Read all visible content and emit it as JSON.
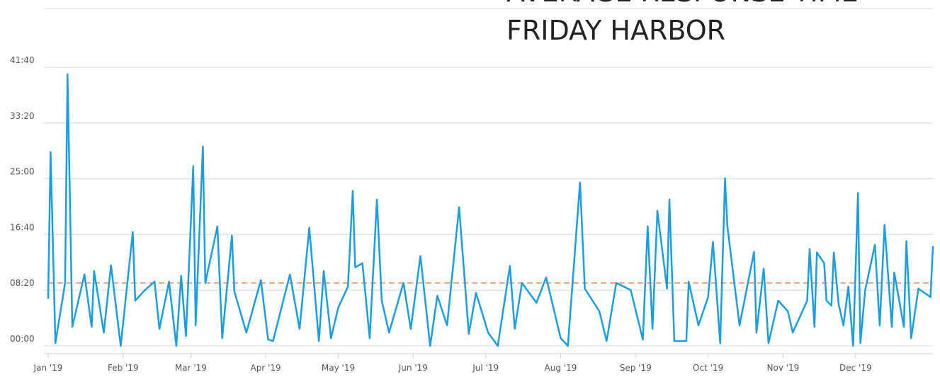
{
  "chart_data": {
    "type": "line",
    "title": [
      "AVERAGE RESPONSE TIME",
      "FRIDAY HARBOR"
    ],
    "x": [
      0,
      1,
      3,
      7,
      8,
      10,
      15,
      18,
      19,
      23,
      26,
      30,
      35,
      36,
      40,
      44,
      46,
      50,
      53,
      55,
      57,
      60,
      61,
      64,
      65,
      70,
      72,
      76,
      77,
      82,
      88,
      91,
      93,
      100,
      104,
      108,
      112,
      114,
      117,
      120,
      124,
      126,
      127,
      130,
      133,
      136,
      138,
      141,
      147,
      150,
      154,
      158,
      161,
      165,
      170,
      174,
      177,
      182,
      186,
      191,
      193,
      196,
      202,
      206,
      212,
      215,
      220,
      222,
      228,
      231,
      235,
      241,
      246,
      248,
      250,
      252,
      256,
      257,
      259,
      264,
      265,
      269,
      273,
      275,
      278,
      280,
      281,
      286,
      292,
      293,
      296,
      298,
      302,
      306,
      308,
      314,
      315,
      317,
      318,
      321,
      322,
      324,
      325,
      327,
      329,
      331,
      333,
      335,
      336,
      338,
      342,
      344,
      346,
      349,
      350,
      354,
      355,
      357,
      360,
      365,
      366
    ],
    "series": [
      {
        "name": "Average response time",
        "color": "#1a9ee0",
        "values": [
          425,
          1739,
          25,
          565,
          2437,
          171,
          640,
          171,
          672,
          120,
          723,
          0,
          1021,
          406,
          500,
          577,
          152,
          577,
          0,
          628,
          89,
          1612,
          184,
          1789,
          565,
          1072,
          70,
          990,
          489,
          120,
          590,
          57,
          44,
          641,
          152,
          1060,
          44,
          672,
          70,
          343,
          533,
          1390,
          704,
          742,
          70,
          1313,
          406,
          120,
          565,
          152,
          806,
          0,
          450,
          184,
          1244,
          108,
          476,
          120,
          0,
          717,
          152,
          565,
          387,
          615,
          70,
          0,
          1466,
          514,
          311,
          44,
          565,
          501,
          57,
          1072,
          152,
          1212,
          514,
          1313,
          44,
          44,
          577,
          184,
          438,
          933,
          25,
          1504,
          1072,
          184,
          844,
          120,
          692,
          25,
          406,
          311,
          120,
          406,
          869,
          171,
          838,
          742,
          406,
          362,
          838,
          374,
          184,
          533,
          0,
          1371,
          25,
          501,
          907,
          184,
          1085,
          171,
          660,
          171,
          939,
          70,
          514,
          438,
          895
        ]
      }
    ],
    "reference_line": {
      "value": 565,
      "color": "#f4a582"
    },
    "xlim": [
      0,
      366
    ],
    "xticks": [
      {
        "value": 0,
        "label": "Jan '19"
      },
      {
        "value": 31,
        "label": "Feb '19"
      },
      {
        "value": 59,
        "label": "Mar '19"
      },
      {
        "value": 90,
        "label": "Apr '19"
      },
      {
        "value": 120,
        "label": "May '19"
      },
      {
        "value": 151,
        "label": "Jun '19"
      },
      {
        "value": 181,
        "label": "Jul '19"
      },
      {
        "value": 212,
        "label": "Aug '19"
      },
      {
        "value": 243,
        "label": "Sep '19"
      },
      {
        "value": 273,
        "label": "Oct '19"
      },
      {
        "value": 304,
        "label": "Nov '19"
      },
      {
        "value": 334,
        "label": "Dec '19"
      }
    ],
    "ylim": [
      0,
      2500
    ],
    "yticks": [
      {
        "value": 0,
        "label": "00:00"
      },
      {
        "value": 500,
        "label": "08:20"
      },
      {
        "value": 1000,
        "label": "16:40"
      },
      {
        "value": 1500,
        "label": "25:00"
      },
      {
        "value": 2000,
        "label": "33:20"
      },
      {
        "value": 2500,
        "label": "41:40"
      }
    ],
    "grid": true
  }
}
